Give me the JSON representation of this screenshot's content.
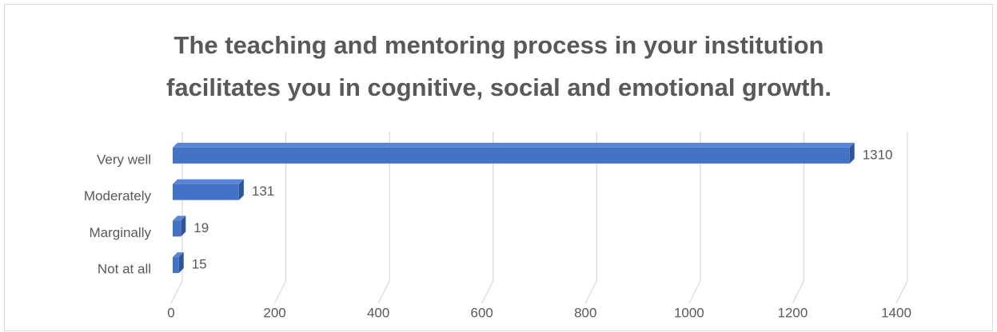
{
  "chart_data": {
    "type": "bar3d_horizontal",
    "title": [
      "The teaching and mentoring process in your institution",
      "facilitates you in cognitive, social and emotional growth."
    ],
    "categories": [
      "Very well",
      "Moderately",
      "Marginally",
      "Not at all"
    ],
    "values": [
      1310,
      131,
      19,
      15
    ],
    "color": "#4472c4",
    "xlim": [
      0,
      1400
    ],
    "xticks": [
      0,
      200,
      400,
      600,
      800,
      1000,
      1200,
      1400
    ],
    "grid": true
  }
}
